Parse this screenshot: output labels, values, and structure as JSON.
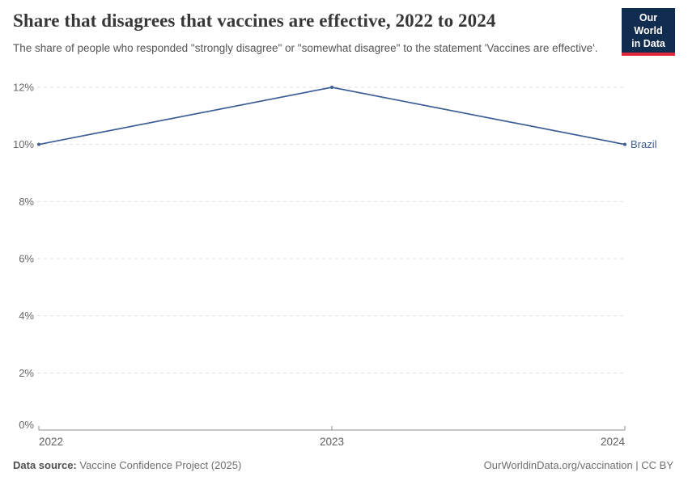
{
  "header": {
    "title": "Share that disagrees that vaccines are effective, 2022 to 2024",
    "subtitle": "The share of people who responded \"strongly disagree\" or \"somewhat disagree\" to the statement 'Vaccines are effective'.",
    "logo": {
      "line1": "Our World",
      "line2": "in Data"
    }
  },
  "chart_data": {
    "type": "line",
    "title": "Share that disagrees that vaccines are effective, 2022 to 2024",
    "x": [
      2022,
      2023,
      2024
    ],
    "series": [
      {
        "name": "Brazil",
        "values": [
          10,
          12,
          10
        ],
        "color": "#3e5e96"
      }
    ],
    "unit": "%",
    "ylim": [
      0,
      12
    ],
    "yticks": [
      0,
      2,
      4,
      6,
      8,
      10,
      12
    ],
    "xticks": [
      2022,
      2023,
      2024
    ],
    "grid": "horizontal-dashed",
    "legend": "end-of-line-label"
  },
  "footer": {
    "datasource_label": "Data source:",
    "datasource_value": "Vaccine Confidence Project (2025)",
    "attribution": "OurWorldinData.org/vaccination | CC BY"
  },
  "colors": {
    "accent_line": "#3e5e96",
    "logo_bg": "#102d50",
    "logo_red": "#e0293c",
    "grid": "#dedede",
    "axis": "#8f8f8f",
    "tick_text": "#666666",
    "title_text": "#373737",
    "subtitle_text": "#555555",
    "footer_text": "#6f6f6f"
  }
}
